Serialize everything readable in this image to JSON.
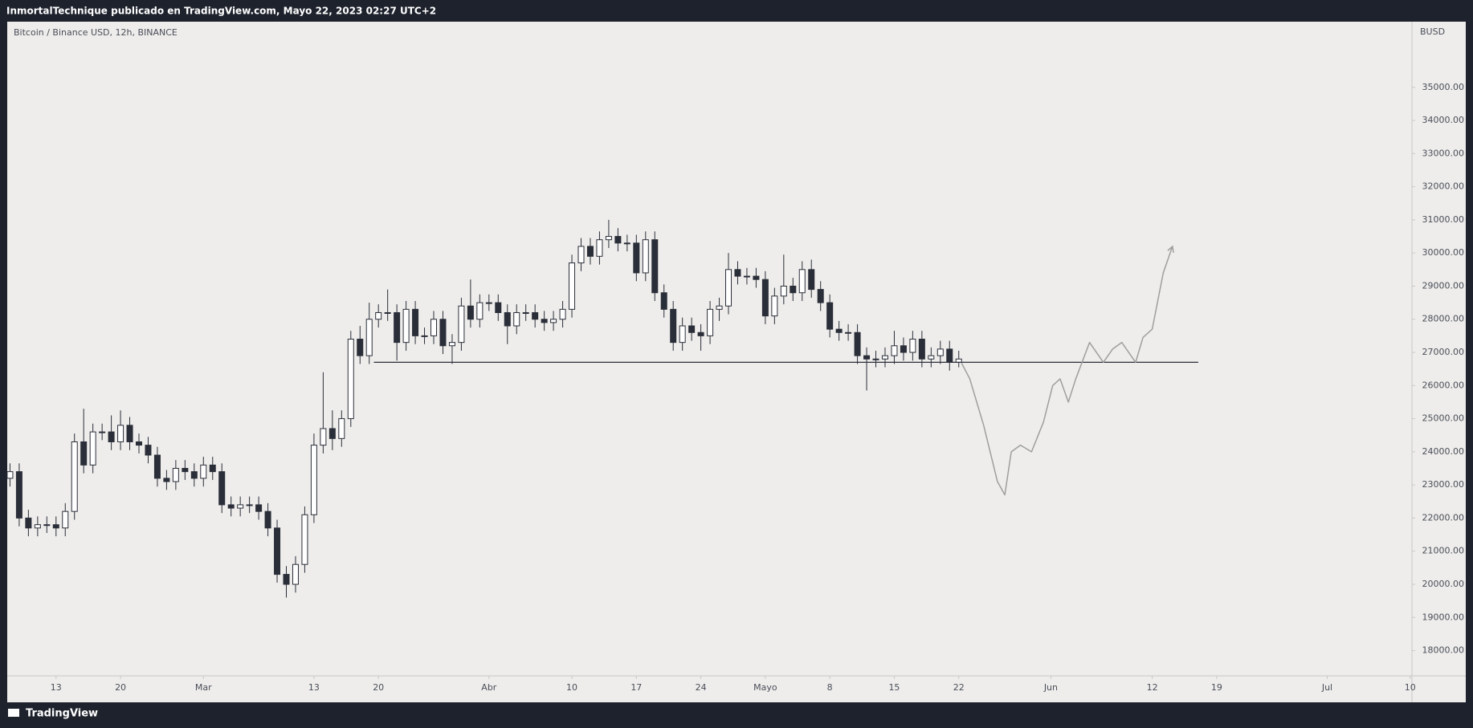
{
  "header": {
    "text": "InmortalTechnique publicado en TradingView.com, Mayo 22, 2023 02:27 UTC+2"
  },
  "footer": {
    "brand": "TradingView"
  },
  "chart_data": {
    "type": "candlestick",
    "title": "Bitcoin / Binance USD, 12h, BINANCE",
    "currency": "BUSD",
    "colors": {
      "up": "#ffffff",
      "down": "#2a2e39",
      "outline": "#2a2e39",
      "projection": "#9e9e9e",
      "level": "#2a2e39"
    },
    "x": [
      39,
      40,
      41,
      42,
      43,
      44,
      45,
      46,
      47,
      48,
      49,
      50,
      51,
      52,
      53,
      54,
      55,
      56,
      57,
      58,
      59,
      60,
      61,
      62,
      63,
      64,
      65,
      66,
      67,
      68,
      69,
      70,
      71,
      72,
      73,
      74,
      75,
      76,
      77,
      78,
      79,
      80,
      81,
      82,
      83,
      84,
      85,
      86,
      87,
      88,
      89,
      90,
      91,
      92,
      93,
      94,
      95,
      96,
      97,
      98,
      99,
      100,
      101,
      102,
      103,
      104,
      105,
      106,
      107,
      108,
      109,
      110,
      111,
      112,
      113,
      114,
      115,
      116,
      117,
      118,
      119,
      120,
      121,
      122,
      123,
      124,
      125,
      126,
      127,
      128,
      129,
      130,
      131,
      132,
      133,
      134,
      135,
      136,
      137,
      138,
      139,
      140,
      141,
      142
    ],
    "open": [
      23200,
      23400,
      22000,
      21700,
      21800,
      21800,
      21700,
      22200,
      24300,
      23600,
      24600,
      24600,
      24300,
      24800,
      24300,
      24200,
      23900,
      23200,
      23100,
      23500,
      23400,
      23200,
      23600,
      23400,
      22400,
      22300,
      22400,
      22400,
      22200,
      21700,
      20300,
      20000,
      20600,
      22100,
      24200,
      24700,
      24400,
      25000,
      27400,
      26900,
      28000,
      28200,
      28200,
      27300,
      28300,
      27500,
      27500,
      28000,
      27200,
      27300,
      28400,
      28000,
      28500,
      28500,
      28200,
      27800,
      28200,
      28200,
      28000,
      27900,
      28000,
      28300,
      29700,
      30200,
      29900,
      30400,
      30500,
      30300,
      30300,
      29400,
      30400,
      28800,
      28300,
      27300,
      27800,
      27600,
      27500,
      28300,
      28400,
      29500,
      29300,
      29300,
      29200,
      28100,
      28700,
      29000,
      28800,
      29500,
      28900,
      28500,
      27700,
      27600,
      27600,
      26900,
      26800,
      26800,
      26900,
      27200,
      27000,
      27400,
      26800,
      26900,
      27100,
      26700
    ],
    "high": [
      23650,
      23650,
      22250,
      22050,
      22050,
      22050,
      22450,
      24550,
      25300,
      24850,
      24850,
      25100,
      25250,
      25050,
      24550,
      24450,
      24150,
      23450,
      23750,
      23750,
      23650,
      23850,
      23850,
      23650,
      22650,
      22650,
      22650,
      22650,
      22450,
      21950,
      20550,
      20850,
      22350,
      24550,
      26400,
      25250,
      25250,
      27650,
      27800,
      28500,
      28450,
      28900,
      28450,
      28550,
      28550,
      27750,
      28250,
      28250,
      27550,
      28650,
      29200,
      28750,
      28750,
      28750,
      28450,
      28450,
      28450,
      28450,
      28250,
      28250,
      28550,
      29950,
      30450,
      30450,
      30650,
      31000,
      30750,
      30550,
      30550,
      30650,
      30650,
      29050,
      28550,
      28050,
      28050,
      27850,
      28550,
      28650,
      30000,
      29750,
      29550,
      29550,
      29450,
      28950,
      29950,
      29250,
      29750,
      29800,
      29150,
      28750,
      27950,
      27850,
      27850,
      27150,
      27050,
      27150,
      27650,
      27450,
      27650,
      27650,
      27150,
      27350,
      27350,
      27050
    ],
    "low": [
      22950,
      21750,
      21450,
      21450,
      21550,
      21450,
      21450,
      21950,
      23350,
      23350,
      24350,
      24050,
      24050,
      24050,
      23950,
      23650,
      22950,
      22850,
      22850,
      23150,
      22950,
      22950,
      23150,
      22150,
      22050,
      22050,
      22150,
      21950,
      21450,
      20050,
      19600,
      19750,
      20350,
      21850,
      23950,
      24050,
      24150,
      24750,
      26650,
      26650,
      27750,
      27950,
      26750,
      27050,
      27250,
      27250,
      27250,
      26950,
      26650,
      27050,
      27750,
      27750,
      28250,
      27950,
      27250,
      27550,
      27950,
      27750,
      27650,
      27650,
      27750,
      28050,
      29450,
      29650,
      29650,
      30150,
      30050,
      30050,
      29150,
      29150,
      28550,
      28050,
      27050,
      27050,
      27350,
      27050,
      27250,
      27950,
      28150,
      29050,
      29050,
      28950,
      27850,
      27850,
      28450,
      28550,
      28550,
      28650,
      28250,
      27450,
      27350,
      27350,
      26650,
      25850,
      26550,
      26550,
      26650,
      26750,
      26750,
      26550,
      26550,
      26650,
      26450,
      26550
    ],
    "close": [
      23400,
      22000,
      21700,
      21800,
      21800,
      21700,
      22200,
      24300,
      23600,
      24600,
      24600,
      24300,
      24800,
      24300,
      24200,
      23900,
      23200,
      23100,
      23500,
      23400,
      23200,
      23600,
      23400,
      22400,
      22300,
      22400,
      22400,
      22200,
      21700,
      20300,
      20000,
      20600,
      22100,
      24200,
      24700,
      24400,
      25000,
      27400,
      26900,
      28000,
      28200,
      28200,
      27300,
      28300,
      27500,
      27500,
      28000,
      27200,
      27300,
      28400,
      28000,
      28500,
      28500,
      28200,
      27800,
      28200,
      28200,
      28000,
      27900,
      28000,
      28300,
      29700,
      30200,
      29900,
      30400,
      30500,
      30300,
      30300,
      29400,
      30400,
      28800,
      28300,
      27300,
      27800,
      27600,
      27500,
      28300,
      28400,
      29500,
      29300,
      29300,
      29200,
      28100,
      28700,
      29000,
      28800,
      29500,
      28900,
      28500,
      27700,
      27600,
      27600,
      26900,
      26800,
      26800,
      26900,
      27200,
      27000,
      27400,
      26800,
      26900,
      27100,
      26700,
      26800
    ],
    "hline": {
      "value": 26700,
      "x": [
        78.5,
        168
      ]
    },
    "projection": {
      "x": [
        142.3,
        143.2,
        144.7,
        146.2,
        147.0,
        147.7,
        148.7,
        149.9,
        151.2,
        152.2,
        153.0,
        153.9,
        154.7,
        156.2,
        157.7,
        158.7,
        159.7,
        161.2,
        162.0,
        163.0,
        164.2,
        165.2
      ],
      "y": [
        26680,
        26200,
        24800,
        23100,
        22700,
        24000,
        24200,
        24000,
        24900,
        26000,
        26200,
        25500,
        26200,
        27300,
        26700,
        27100,
        27300,
        26700,
        27450,
        27700,
        29400,
        30200
      ]
    },
    "xlim": [
      38.7,
      191.2
    ],
    "xticks": [
      {
        "value": 44,
        "label": "13"
      },
      {
        "value": 51,
        "label": "20"
      },
      {
        "value": 60,
        "label": "Mar"
      },
      {
        "value": 72,
        "label": "13"
      },
      {
        "value": 79,
        "label": "20"
      },
      {
        "value": 91,
        "label": "Abr"
      },
      {
        "value": 100,
        "label": "10"
      },
      {
        "value": 107,
        "label": "17"
      },
      {
        "value": 114,
        "label": "24"
      },
      {
        "value": 121,
        "label": "Mayo"
      },
      {
        "value": 128,
        "label": "8"
      },
      {
        "value": 135,
        "label": "15"
      },
      {
        "value": 142,
        "label": "22"
      },
      {
        "value": 152,
        "label": "Jun"
      },
      {
        "value": 163,
        "label": "12"
      },
      {
        "value": 170,
        "label": "19"
      },
      {
        "value": 182,
        "label": "Jul"
      },
      {
        "value": 191,
        "label": "10"
      }
    ],
    "ylim": [
      17238,
      36957
    ],
    "yticks": [
      {
        "value": 18000,
        "label": "18000.00"
      },
      {
        "value": 19000,
        "label": "19000.00"
      },
      {
        "value": 20000,
        "label": "20000.00"
      },
      {
        "value": 21000,
        "label": "21000.00"
      },
      {
        "value": 22000,
        "label": "22000.00"
      },
      {
        "value": 23000,
        "label": "23000.00"
      },
      {
        "value": 24000,
        "label": "24000.00"
      },
      {
        "value": 25000,
        "label": "25000.00"
      },
      {
        "value": 26000,
        "label": "26000.00"
      },
      {
        "value": 27000,
        "label": "27000.00"
      },
      {
        "value": 28000,
        "label": "28000.00"
      },
      {
        "value": 29000,
        "label": "29000.00"
      },
      {
        "value": 30000,
        "label": "30000.00"
      },
      {
        "value": 31000,
        "label": "31000.00"
      },
      {
        "value": 32000,
        "label": "32000.00"
      },
      {
        "value": 33000,
        "label": "33000.00"
      },
      {
        "value": 34000,
        "label": "34000.00"
      },
      {
        "value": 35000,
        "label": "35000.00"
      }
    ],
    "grid": false
  }
}
